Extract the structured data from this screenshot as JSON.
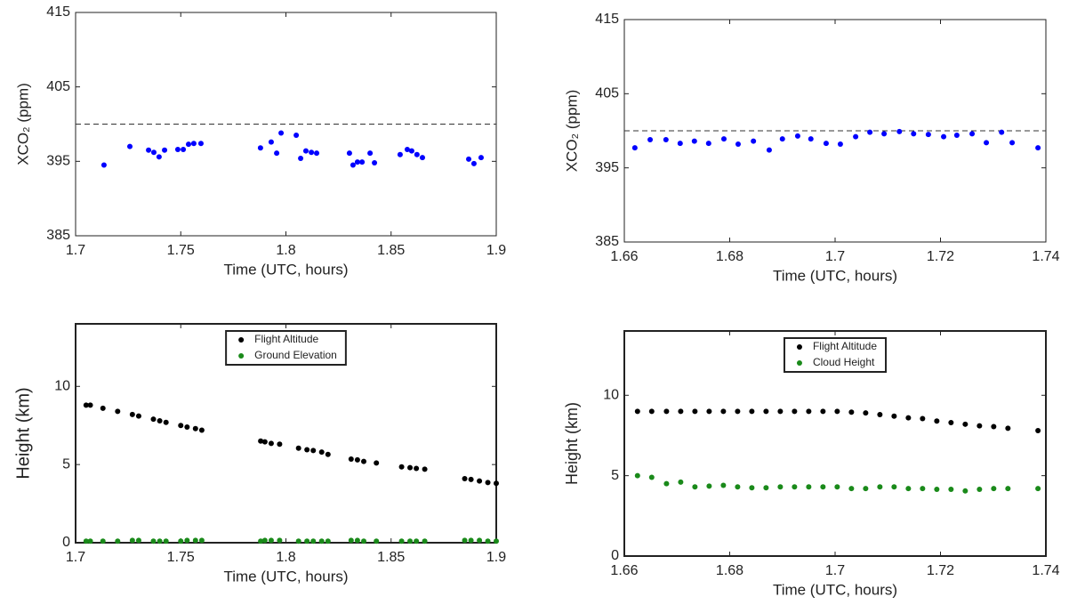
{
  "chart_data": [
    {
      "type": "scatter",
      "xlabel": "Time (UTC, hours)",
      "ylabel": "XCO₂ (ppm)",
      "xlim": [
        1.7,
        1.9
      ],
      "xticks": [
        1.7,
        1.75,
        1.8,
        1.85,
        1.9
      ],
      "ylim": [
        385,
        415
      ],
      "yticks": [
        385,
        395,
        405,
        415
      ],
      "reference_line": 400,
      "x": [
        1.7135,
        1.7258,
        1.7347,
        1.7372,
        1.7397,
        1.7423,
        1.7486,
        1.7512,
        1.7537,
        1.7562,
        1.7596,
        1.7879,
        1.793,
        1.7956,
        1.7977,
        1.8049,
        1.807,
        1.8095,
        1.8121,
        1.8146,
        1.8302,
        1.8319,
        1.834,
        1.8362,
        1.84,
        1.8421,
        1.8543,
        1.8577,
        1.8598,
        1.8623,
        1.8649,
        1.8869,
        1.8894,
        1.8928
      ],
      "series": [
        {
          "color": "#0000ff",
          "values": [
            394.5,
            397.0,
            396.5,
            396.2,
            395.6,
            396.5,
            396.6,
            396.6,
            397.3,
            397.4,
            397.4,
            396.8,
            397.6,
            396.1,
            398.8,
            398.5,
            395.4,
            396.4,
            396.2,
            396.1,
            396.1,
            394.5,
            394.9,
            394.9,
            396.1,
            394.8,
            395.9,
            396.6,
            396.4,
            395.9,
            395.5,
            395.3,
            394.7,
            395.5
          ]
        }
      ]
    },
    {
      "type": "scatter",
      "xlabel": "Time (UTC, hours)",
      "ylabel": "XCO₂ (ppm)",
      "xlim": [
        1.66,
        1.74
      ],
      "xticks": [
        1.66,
        1.68,
        1.7,
        1.72,
        1.74
      ],
      "ylim": [
        385,
        415
      ],
      "yticks": [
        385,
        395,
        405,
        415
      ],
      "reference_line": 400,
      "x": [
        1.662,
        1.6649,
        1.6679,
        1.6706,
        1.6733,
        1.676,
        1.6789,
        1.6816,
        1.6845,
        1.6875,
        1.69,
        1.6929,
        1.6954,
        1.6983,
        1.701,
        1.7039,
        1.7066,
        1.7093,
        1.7122,
        1.7149,
        1.7177,
        1.7206,
        1.7231,
        1.726,
        1.7287,
        1.7316,
        1.7336,
        1.7385
      ],
      "series": [
        {
          "color": "#0000ff",
          "values": [
            397.7,
            398.8,
            398.8,
            398.3,
            398.6,
            398.3,
            398.9,
            398.2,
            398.6,
            397.4,
            398.9,
            399.3,
            398.9,
            398.3,
            398.2,
            399.2,
            399.8,
            399.6,
            399.9,
            399.6,
            399.5,
            399.2,
            399.4,
            399.6,
            398.4,
            399.8,
            398.4,
            397.7
          ]
        }
      ]
    },
    {
      "type": "scatter",
      "xlabel": "Time (UTC, hours)",
      "ylabel": "Height (km)",
      "xlim": [
        1.7,
        1.9
      ],
      "xticks": [
        1.7,
        1.75,
        1.8,
        1.85,
        1.9
      ],
      "ylim": [
        0,
        14
      ],
      "yticks": [
        0,
        5,
        10
      ],
      "legend": "upper center",
      "x": [
        1.705,
        1.707,
        1.713,
        1.72,
        1.727,
        1.73,
        1.737,
        1.74,
        1.743,
        1.75,
        1.753,
        1.757,
        1.76,
        1.788,
        1.79,
        1.793,
        1.797,
        1.806,
        1.81,
        1.813,
        1.817,
        1.82,
        1.831,
        1.834,
        1.837,
        1.843,
        1.855,
        1.859,
        1.862,
        1.866,
        1.885,
        1.888,
        1.892,
        1.896,
        1.9
      ],
      "series": [
        {
          "name": "Flight Altitude",
          "color": "#000000",
          "values": [
            8.8,
            8.8,
            8.6,
            8.4,
            8.2,
            8.1,
            7.9,
            7.8,
            7.7,
            7.5,
            7.4,
            7.3,
            7.2,
            6.5,
            6.45,
            6.35,
            6.3,
            6.05,
            5.95,
            5.9,
            5.8,
            5.65,
            5.35,
            5.3,
            5.2,
            5.1,
            4.85,
            4.8,
            4.75,
            4.7,
            4.1,
            4.05,
            3.95,
            3.85,
            3.8
          ]
        },
        {
          "name": "Ground Elevation",
          "color": "#1a8a1a",
          "values": [
            0.1,
            0.1,
            0.1,
            0.1,
            0.15,
            0.15,
            0.1,
            0.1,
            0.1,
            0.1,
            0.15,
            0.15,
            0.15,
            0.1,
            0.15,
            0.15,
            0.15,
            0.1,
            0.1,
            0.1,
            0.1,
            0.1,
            0.15,
            0.15,
            0.1,
            0.1,
            0.1,
            0.1,
            0.1,
            0.1,
            0.15,
            0.15,
            0.15,
            0.1,
            0.1
          ]
        }
      ]
    },
    {
      "type": "scatter",
      "xlabel": "Time (UTC, hours)",
      "ylabel": "Height (km)",
      "xlim": [
        1.66,
        1.74
      ],
      "xticks": [
        1.66,
        1.68,
        1.7,
        1.72,
        1.74
      ],
      "ylim": [
        0,
        14
      ],
      "yticks": [
        0,
        5,
        10
      ],
      "legend": "upper center",
      "x": [
        1.6625,
        1.6652,
        1.668,
        1.6707,
        1.6734,
        1.6761,
        1.6788,
        1.6815,
        1.6842,
        1.6869,
        1.6896,
        1.6923,
        1.695,
        1.6977,
        1.7004,
        1.7031,
        1.7058,
        1.7085,
        1.7112,
        1.7139,
        1.7166,
        1.7193,
        1.722,
        1.7247,
        1.7274,
        1.7301,
        1.7328,
        1.7385
      ],
      "series": [
        {
          "name": "Flight Altitude",
          "color": "#000000",
          "values": [
            9.0,
            9.0,
            9.0,
            9.0,
            9.0,
            9.0,
            9.0,
            9.0,
            9.0,
            9.0,
            9.0,
            9.0,
            9.0,
            9.0,
            9.0,
            8.95,
            8.9,
            8.8,
            8.7,
            8.6,
            8.55,
            8.4,
            8.3,
            8.2,
            8.1,
            8.05,
            7.95,
            7.8
          ]
        },
        {
          "name": "Cloud Height",
          "color": "#1a8a1a",
          "values": [
            5.0,
            4.9,
            4.5,
            4.6,
            4.3,
            4.35,
            4.4,
            4.3,
            4.25,
            4.25,
            4.3,
            4.3,
            4.3,
            4.3,
            4.3,
            4.2,
            4.2,
            4.3,
            4.3,
            4.2,
            4.2,
            4.15,
            4.15,
            4.05,
            4.15,
            4.2,
            4.2,
            4.2
          ]
        }
      ]
    }
  ]
}
